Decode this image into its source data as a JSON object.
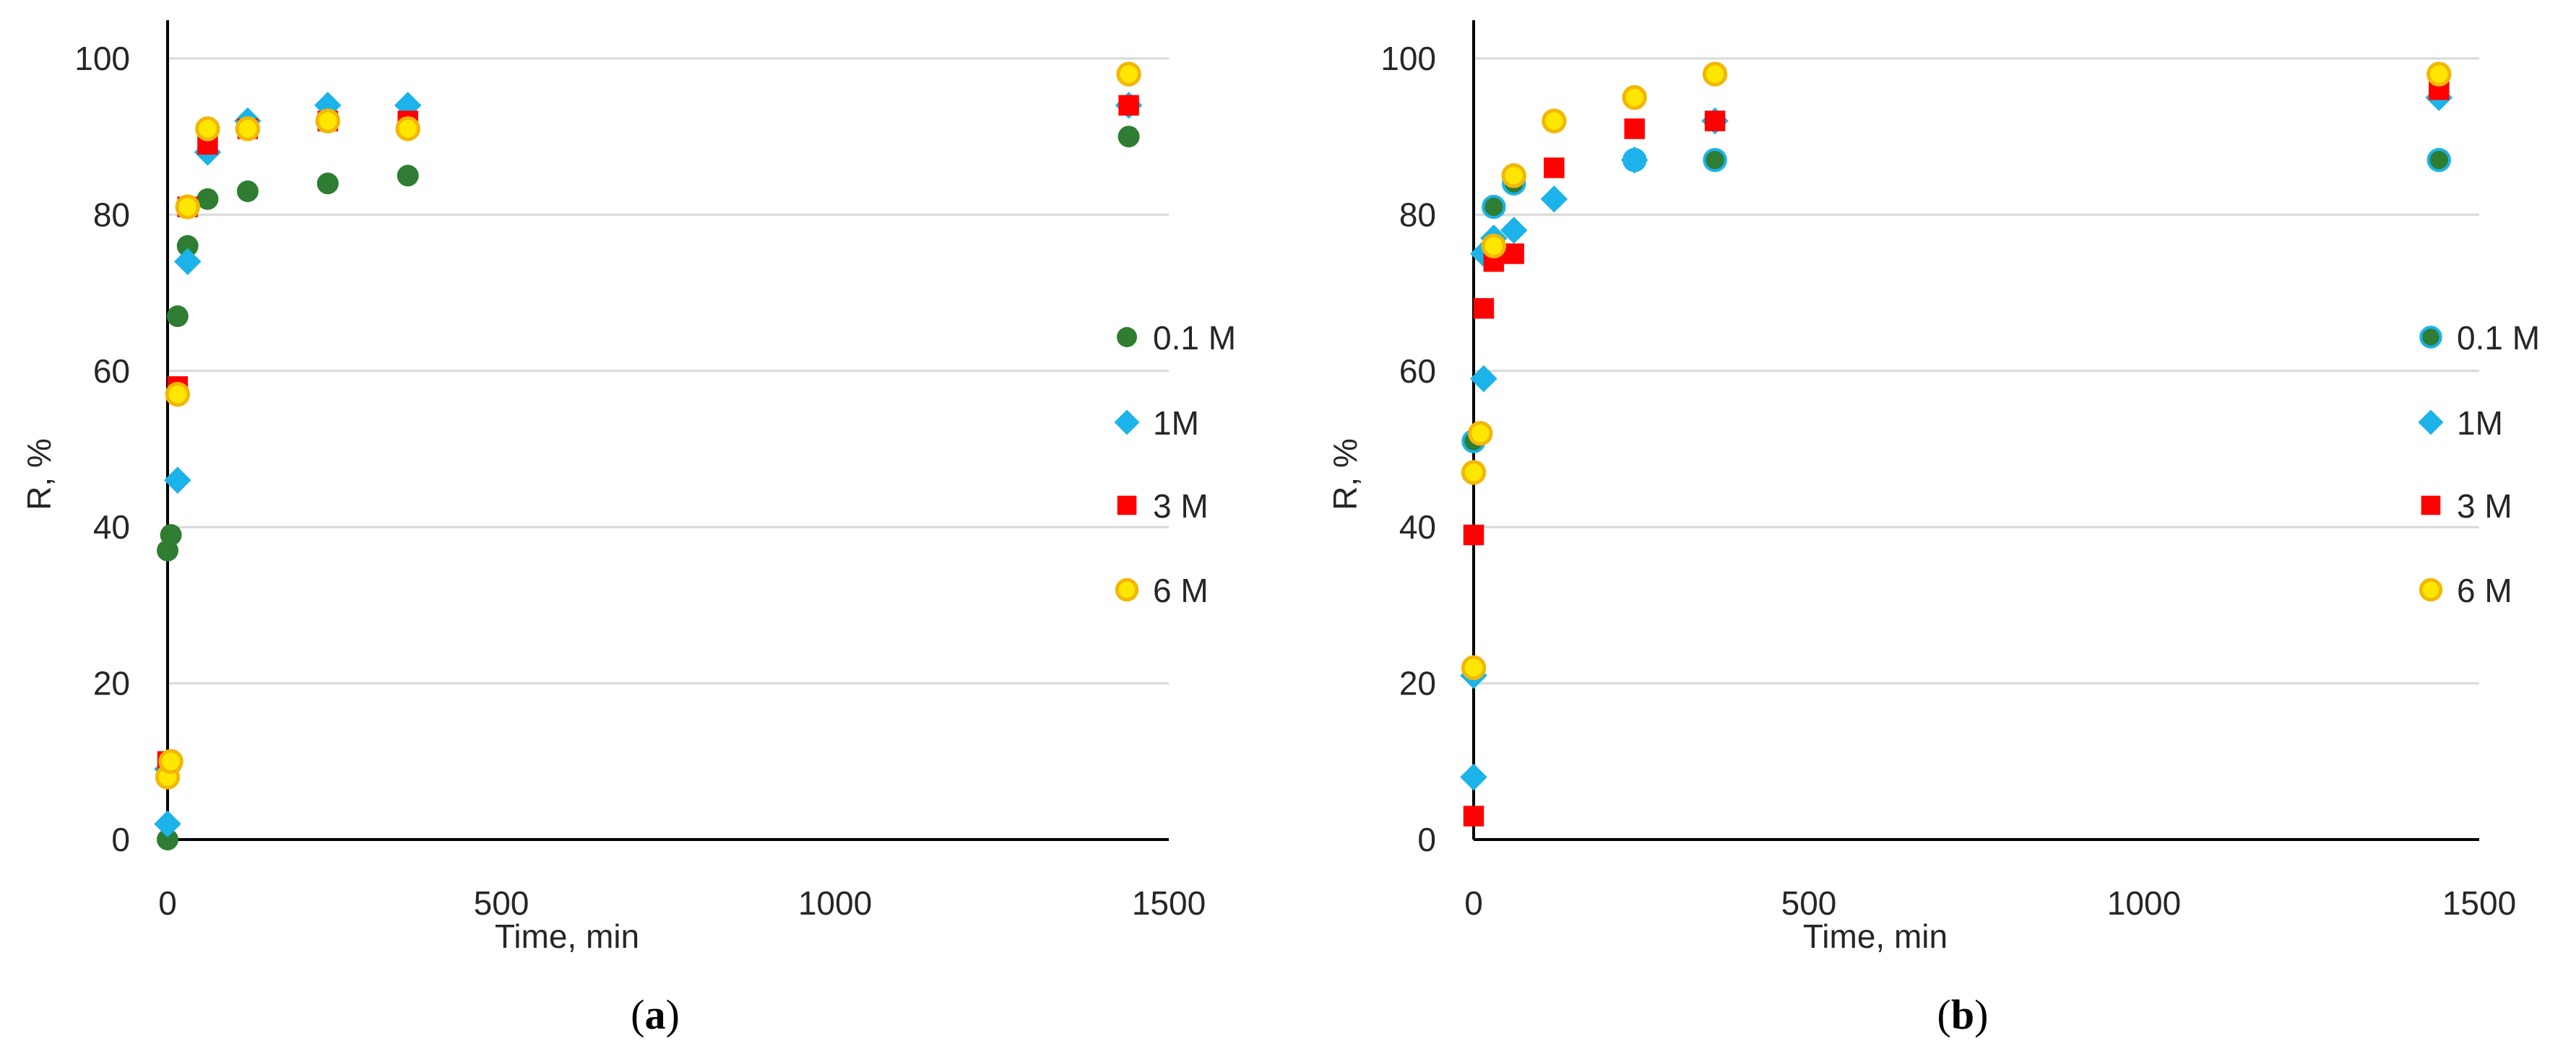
{
  "chart_data": [
    {
      "type": "scatter",
      "panel": "a",
      "caption": {
        "open": "(",
        "letter": "a",
        "close": ")"
      },
      "title": "",
      "xlabel": "Time, min",
      "ylabel": "R, %",
      "xlim": [
        0,
        1500
      ],
      "ylim": [
        0,
        100
      ],
      "x_ticks": [
        "0",
        "500",
        "1000",
        "1500"
      ],
      "y_ticks": [
        "0",
        "20",
        "40",
        "60",
        "80",
        "100"
      ],
      "grid": "horizontal",
      "legend_position": "right",
      "series": [
        {
          "name": "0.1 M",
          "marker": "circle",
          "color": "#2E7D32",
          "points": [
            [
              0,
              0
            ],
            [
              0,
              37
            ],
            [
              5,
              39
            ],
            [
              15,
              67
            ],
            [
              30,
              76
            ],
            [
              60,
              82
            ],
            [
              120,
              83
            ],
            [
              240,
              84
            ],
            [
              360,
              85
            ],
            [
              1440,
              90
            ]
          ]
        },
        {
          "name": "1M",
          "marker": "diamond",
          "color": "#1BB3EA",
          "points": [
            [
              0,
              2
            ],
            [
              0,
              9
            ],
            [
              15,
              46
            ],
            [
              30,
              74
            ],
            [
              60,
              88
            ],
            [
              120,
              92
            ],
            [
              240,
              94
            ],
            [
              360,
              94
            ],
            [
              1440,
              94
            ]
          ]
        },
        {
          "name": "3 M",
          "marker": "square",
          "color": "#FF0000",
          "points": [
            [
              0,
              10
            ],
            [
              15,
              58
            ],
            [
              30,
              81
            ],
            [
              60,
              89
            ],
            [
              120,
              91
            ],
            [
              240,
              92
            ],
            [
              360,
              92
            ],
            [
              1440,
              94
            ]
          ]
        },
        {
          "name": "6 M",
          "marker": "circle-outline",
          "color": "#FFE600",
          "stroke": "#F2B705",
          "points": [
            [
              0,
              8
            ],
            [
              5,
              10
            ],
            [
              15,
              57
            ],
            [
              30,
              81
            ],
            [
              60,
              91
            ],
            [
              120,
              91
            ],
            [
              240,
              92
            ],
            [
              360,
              91
            ],
            [
              1440,
              98
            ]
          ]
        }
      ]
    },
    {
      "type": "scatter",
      "panel": "b",
      "caption": {
        "open": "(",
        "letter": "b",
        "close": ")"
      },
      "title": "",
      "xlabel": "Time, min",
      "ylabel": "R, %",
      "xlim": [
        0,
        1500
      ],
      "ylim": [
        0,
        100
      ],
      "x_ticks": [
        "0",
        "500",
        "1000",
        "1500"
      ],
      "y_ticks": [
        "0",
        "20",
        "40",
        "60",
        "80",
        "100"
      ],
      "grid": "horizontal",
      "legend_position": "right",
      "series": [
        {
          "name": "0.1 M",
          "marker": "circle-blue-edge",
          "color": "#2E7D32",
          "stroke": "#1BB3EA",
          "points": [
            [
              0,
              51
            ],
            [
              30,
              81
            ],
            [
              60,
              84
            ],
            [
              240,
              87
            ],
            [
              360,
              87
            ],
            [
              1440,
              87
            ]
          ]
        },
        {
          "name": "1M",
          "marker": "diamond",
          "color": "#1BB3EA",
          "points": [
            [
              0,
              8
            ],
            [
              0,
              21
            ],
            [
              15,
              59
            ],
            [
              15,
              75
            ],
            [
              30,
              77
            ],
            [
              60,
              78
            ],
            [
              120,
              82
            ],
            [
              240,
              87
            ],
            [
              360,
              92
            ],
            [
              1440,
              95
            ]
          ]
        },
        {
          "name": "3 M",
          "marker": "square",
          "color": "#FF0000",
          "points": [
            [
              0,
              3
            ],
            [
              0,
              39
            ],
            [
              15,
              68
            ],
            [
              30,
              74
            ],
            [
              60,
              75
            ],
            [
              120,
              86
            ],
            [
              240,
              91
            ],
            [
              360,
              92
            ],
            [
              1440,
              96
            ]
          ]
        },
        {
          "name": "6 M",
          "marker": "circle-outline",
          "color": "#FFE600",
          "stroke": "#F2B705",
          "points": [
            [
              0,
              22
            ],
            [
              0,
              47
            ],
            [
              10,
              52
            ],
            [
              30,
              76
            ],
            [
              60,
              85
            ],
            [
              120,
              92
            ],
            [
              240,
              95
            ],
            [
              360,
              98
            ],
            [
              1440,
              98
            ]
          ]
        }
      ]
    }
  ]
}
